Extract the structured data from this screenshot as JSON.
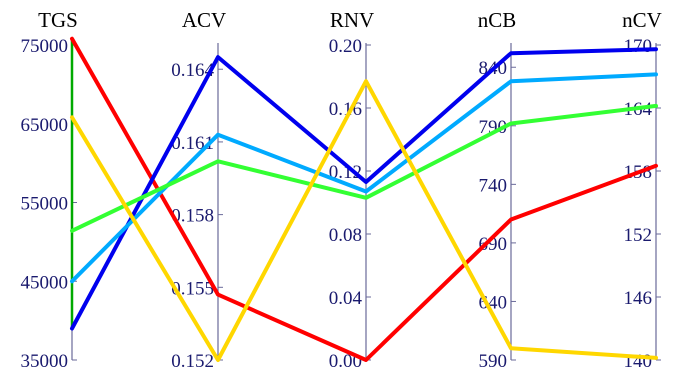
{
  "chart_data": {
    "type": "parallel-coordinates",
    "axes": [
      {
        "name": "TGS",
        "min": 35000,
        "max": 75000,
        "ticks": [
          35000,
          45000,
          55000,
          65000,
          75000
        ],
        "tick_labels": [
          "35000",
          "45000",
          "55000",
          "65000",
          "75000"
        ],
        "label_side": "left"
      },
      {
        "name": "ACV",
        "min": 0.152,
        "max": 0.165,
        "ticks": [
          0.152,
          0.155,
          0.158,
          0.161,
          0.164
        ],
        "tick_labels": [
          "0.152",
          "0.155",
          "0.158",
          "0.161",
          "0.164"
        ],
        "label_side": "left"
      },
      {
        "name": "RNV",
        "min": 0.0,
        "max": 0.2,
        "ticks": [
          0.0,
          0.04,
          0.08,
          0.12,
          0.16,
          0.2
        ],
        "tick_labels": [
          "0.00",
          "0.04",
          "0.08",
          "0.12",
          "0.16",
          "0.20"
        ],
        "label_side": "left"
      },
      {
        "name": "nCB",
        "min": 590,
        "max": 859,
        "ticks": [
          590,
          640,
          690,
          740,
          790,
          840
        ],
        "tick_labels": [
          "590",
          "640",
          "690",
          "740",
          "790",
          "840"
        ],
        "label_side": "left"
      },
      {
        "name": "nCV",
        "min": 140,
        "max": 170,
        "ticks": [
          140,
          146,
          152,
          158,
          164,
          170
        ],
        "tick_labels": [
          "140",
          "146",
          "152",
          "158",
          "164",
          "170"
        ],
        "label_side": "left"
      }
    ],
    "series": [
      {
        "color": "#ff0000",
        "values": [
          75800,
          0.1547,
          0.0,
          710,
          158.5
        ]
      },
      {
        "color": "#0000ee",
        "values": [
          39000,
          0.1645,
          0.113,
          852,
          169.6
        ]
      },
      {
        "color": "#00aaff",
        "values": [
          45000,
          0.1613,
          0.107,
          828,
          167.2
        ]
      },
      {
        "color": "#33ff33",
        "values": [
          51400,
          0.1602,
          0.103,
          792,
          164.2
        ]
      },
      {
        "color": "#ffd700",
        "values": [
          65800,
          0.152,
          0.177,
          600,
          140.2
        ]
      }
    ],
    "highlight_axis_segment": {
      "axis": "TGS",
      "from": 39000,
      "to": 75800,
      "color": "#00aa00"
    }
  }
}
